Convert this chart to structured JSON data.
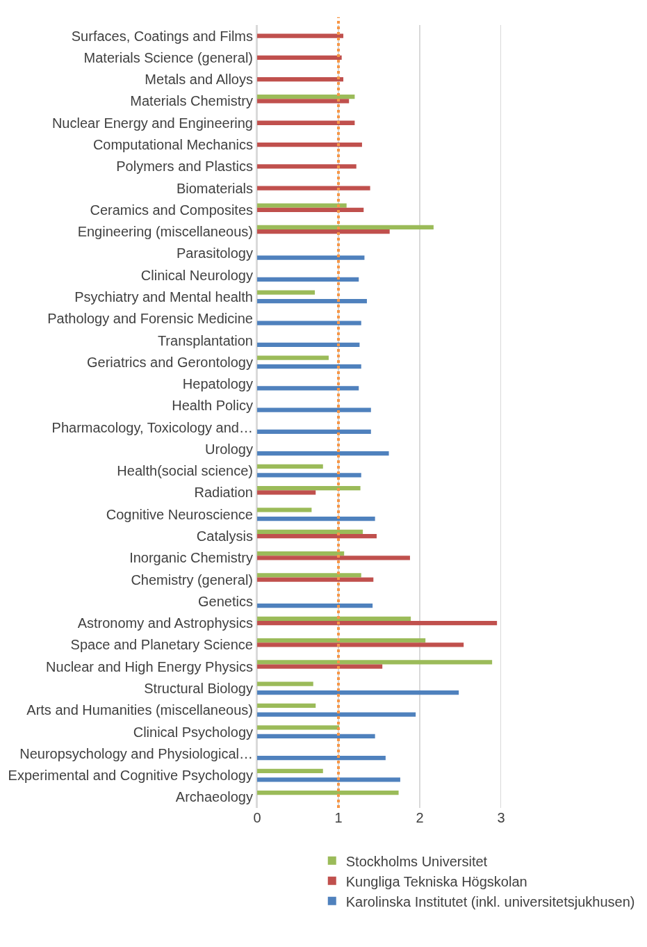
{
  "chart_data": {
    "type": "bar",
    "orientation": "horizontal",
    "categories": [
      "Surfaces, Coatings and Films",
      "Materials Science (general)",
      "Metals and Alloys",
      "Materials Chemistry",
      "Nuclear Energy and Engineering",
      "Computational Mechanics",
      "Polymers and Plastics",
      "Biomaterials",
      "Ceramics and Composites",
      "Engineering (miscellaneous)",
      "Parasitology",
      "Clinical Neurology",
      "Psychiatry and Mental health",
      "Pathology and Forensic Medicine",
      "Transplantation",
      "Geriatrics and Gerontology",
      "Hepatology",
      "Health Policy",
      "Pharmacology, Toxicology and…",
      "Urology",
      "Health(social science)",
      "Radiation",
      "Cognitive Neuroscience",
      "Catalysis",
      "Inorganic Chemistry",
      "Chemistry (general)",
      "Genetics",
      "Astronomy and Astrophysics",
      "Space and Planetary Science",
      "Nuclear and High Energy Physics",
      "Structural Biology",
      "Arts and Humanities (miscellaneous)",
      "Clinical Psychology",
      "Neuropsychology and Physiological…",
      "Experimental and Cognitive Psychology",
      "Archaeology"
    ],
    "series": [
      {
        "name": "Stockholms Universitet",
        "color": "#9bbb59",
        "values": [
          null,
          null,
          null,
          1.2,
          null,
          null,
          null,
          null,
          1.1,
          2.17,
          null,
          null,
          0.71,
          null,
          null,
          0.88,
          null,
          null,
          null,
          null,
          0.81,
          1.27,
          0.67,
          1.3,
          1.07,
          1.28,
          null,
          1.89,
          2.07,
          2.89,
          0.69,
          0.72,
          1.01,
          null,
          0.81,
          1.74
        ]
      },
      {
        "name": "Kungliga Tekniska Högskolan",
        "color": "#c0504d",
        "values": [
          1.06,
          1.04,
          1.06,
          1.13,
          1.2,
          1.29,
          1.22,
          1.39,
          1.31,
          1.63,
          null,
          null,
          null,
          null,
          null,
          null,
          null,
          null,
          null,
          null,
          null,
          0.72,
          null,
          1.47,
          1.88,
          1.43,
          null,
          2.95,
          2.54,
          1.54,
          null,
          null,
          null,
          null,
          null,
          null
        ]
      },
      {
        "name": "Karolinska Institutet (inkl. universitetsjukhusen)",
        "color": "#4f81bd",
        "values": [
          null,
          null,
          null,
          null,
          null,
          null,
          null,
          null,
          null,
          null,
          1.32,
          1.25,
          1.35,
          1.28,
          1.26,
          1.28,
          1.25,
          1.4,
          1.4,
          1.62,
          1.28,
          null,
          1.45,
          null,
          null,
          null,
          1.42,
          null,
          null,
          null,
          2.48,
          1.95,
          1.45,
          1.58,
          1.76,
          null
        ]
      }
    ],
    "xlim": [
      0,
      3
    ],
    "xticks": [
      0,
      1,
      2,
      3
    ],
    "grid": "x",
    "legend": "bottom",
    "ref_lines": [
      {
        "axis": "x",
        "value": 1,
        "color": "#f79646",
        "line_style": "dotted"
      }
    ]
  }
}
